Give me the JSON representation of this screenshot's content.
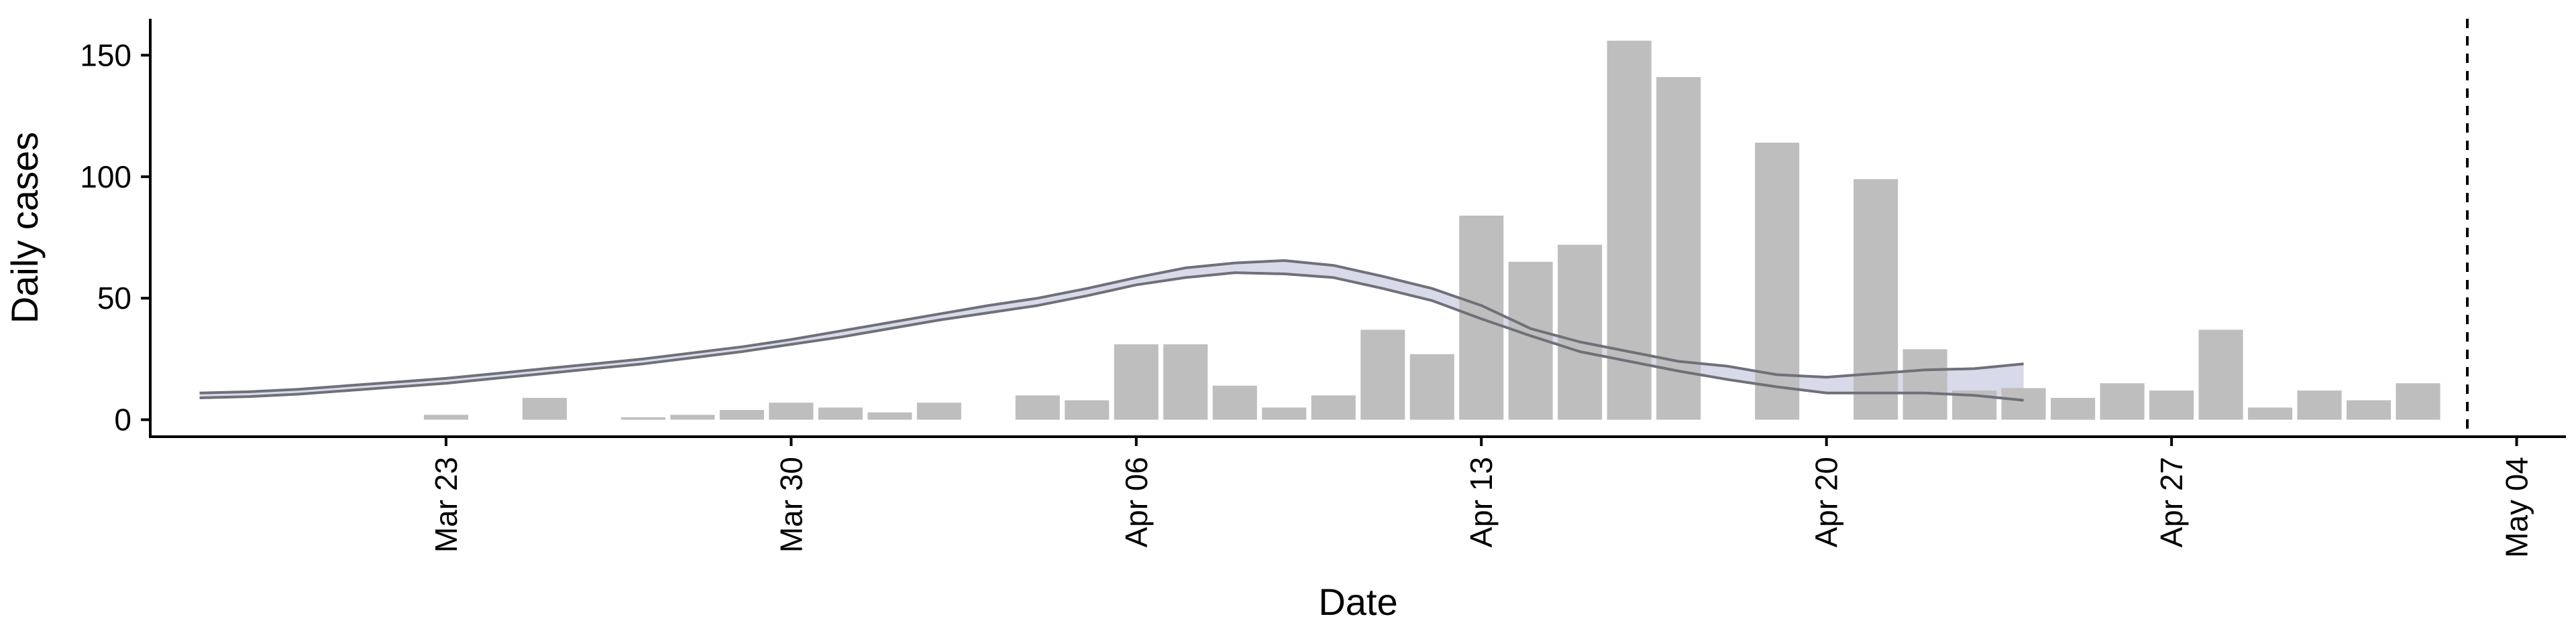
{
  "chart_data": {
    "type": "bar",
    "xlabel": "Date",
    "ylabel": "Daily cases",
    "ylim": [
      -7,
      165
    ],
    "xlim": [
      "2020-03-17",
      "2020-05-05"
    ],
    "x_ticks": [
      "2020-03-23",
      "2020-03-30",
      "2020-04-06",
      "2020-04-13",
      "2020-04-20",
      "2020-04-27",
      "2020-05-04"
    ],
    "x_tick_labels": [
      "Mar 23",
      "Mar 30",
      "Apr 06",
      "Apr 13",
      "Apr 20",
      "Apr 27",
      "May 04"
    ],
    "y_ticks": [
      0,
      50,
      100,
      150
    ],
    "y_tick_labels": [
      "0",
      "50",
      "100",
      "150"
    ],
    "grid": false,
    "legend": "none",
    "bars": {
      "dates": [
        "2020-03-23",
        "2020-03-24",
        "2020-03-25",
        "2020-03-26",
        "2020-03-27",
        "2020-03-28",
        "2020-03-29",
        "2020-03-30",
        "2020-03-31",
        "2020-04-01",
        "2020-04-02",
        "2020-04-03",
        "2020-04-04",
        "2020-04-05",
        "2020-04-06",
        "2020-04-07",
        "2020-04-08",
        "2020-04-09",
        "2020-04-10",
        "2020-04-11",
        "2020-04-12",
        "2020-04-13",
        "2020-04-14",
        "2020-04-15",
        "2020-04-16",
        "2020-04-17",
        "2020-04-18",
        "2020-04-19",
        "2020-04-20",
        "2020-04-21",
        "2020-04-22",
        "2020-04-23",
        "2020-04-24",
        "2020-04-25",
        "2020-04-26",
        "2020-04-27",
        "2020-04-28",
        "2020-04-29",
        "2020-04-30",
        "2020-05-01",
        "2020-05-02",
        "2020-05-03"
      ],
      "values": [
        2,
        0,
        9,
        0,
        1,
        2,
        4,
        7,
        5,
        3,
        7,
        0,
        10,
        8,
        31,
        31,
        14,
        5,
        10,
        37,
        27,
        84,
        65,
        72,
        156,
        141,
        0,
        114,
        0,
        99,
        29,
        12,
        13,
        9,
        15,
        12,
        37,
        5,
        12,
        8,
        15,
        0
      ],
      "color": "#bebebe"
    },
    "lines": {
      "dates": [
        "2020-03-18",
        "2020-03-19",
        "2020-03-20",
        "2020-03-21",
        "2020-03-22",
        "2020-03-23",
        "2020-03-24",
        "2020-03-25",
        "2020-03-26",
        "2020-03-27",
        "2020-03-28",
        "2020-03-29",
        "2020-03-30",
        "2020-03-31",
        "2020-04-01",
        "2020-04-02",
        "2020-04-03",
        "2020-04-04",
        "2020-04-05",
        "2020-04-06",
        "2020-04-07",
        "2020-04-08",
        "2020-04-09",
        "2020-04-10",
        "2020-04-11",
        "2020-04-12",
        "2020-04-13",
        "2020-04-14",
        "2020-04-15",
        "2020-04-16",
        "2020-04-17",
        "2020-04-18",
        "2020-04-19",
        "2020-04-20",
        "2020-04-21",
        "2020-04-22",
        "2020-04-23",
        "2020-04-24"
      ],
      "upper": [
        11,
        11.5,
        12.5,
        14,
        15.5,
        17,
        19,
        21,
        23,
        25,
        27.5,
        30,
        33,
        36.5,
        40,
        43.5,
        47,
        50,
        54,
        58.5,
        62.5,
        64.5,
        65.5,
        63.5,
        59,
        54,
        47,
        37.5,
        32,
        28,
        24,
        22,
        18.5,
        17.5,
        19,
        20.5,
        21,
        23
      ],
      "lower": [
        9,
        9.5,
        10.5,
        12,
        13.5,
        15,
        17,
        19,
        21,
        23,
        25.5,
        28,
        31,
        34,
        37.5,
        41,
        44,
        47,
        51,
        55.5,
        58.5,
        60.5,
        60,
        58.5,
        54,
        49,
        41.5,
        34.5,
        28,
        24,
        20,
        16.5,
        13.5,
        11,
        11,
        11,
        10,
        8
      ],
      "color": "#6f7078",
      "band_color": "#c8cde2"
    },
    "forecast_line": {
      "date": "2020-05-03",
      "style": "dashed"
    }
  }
}
